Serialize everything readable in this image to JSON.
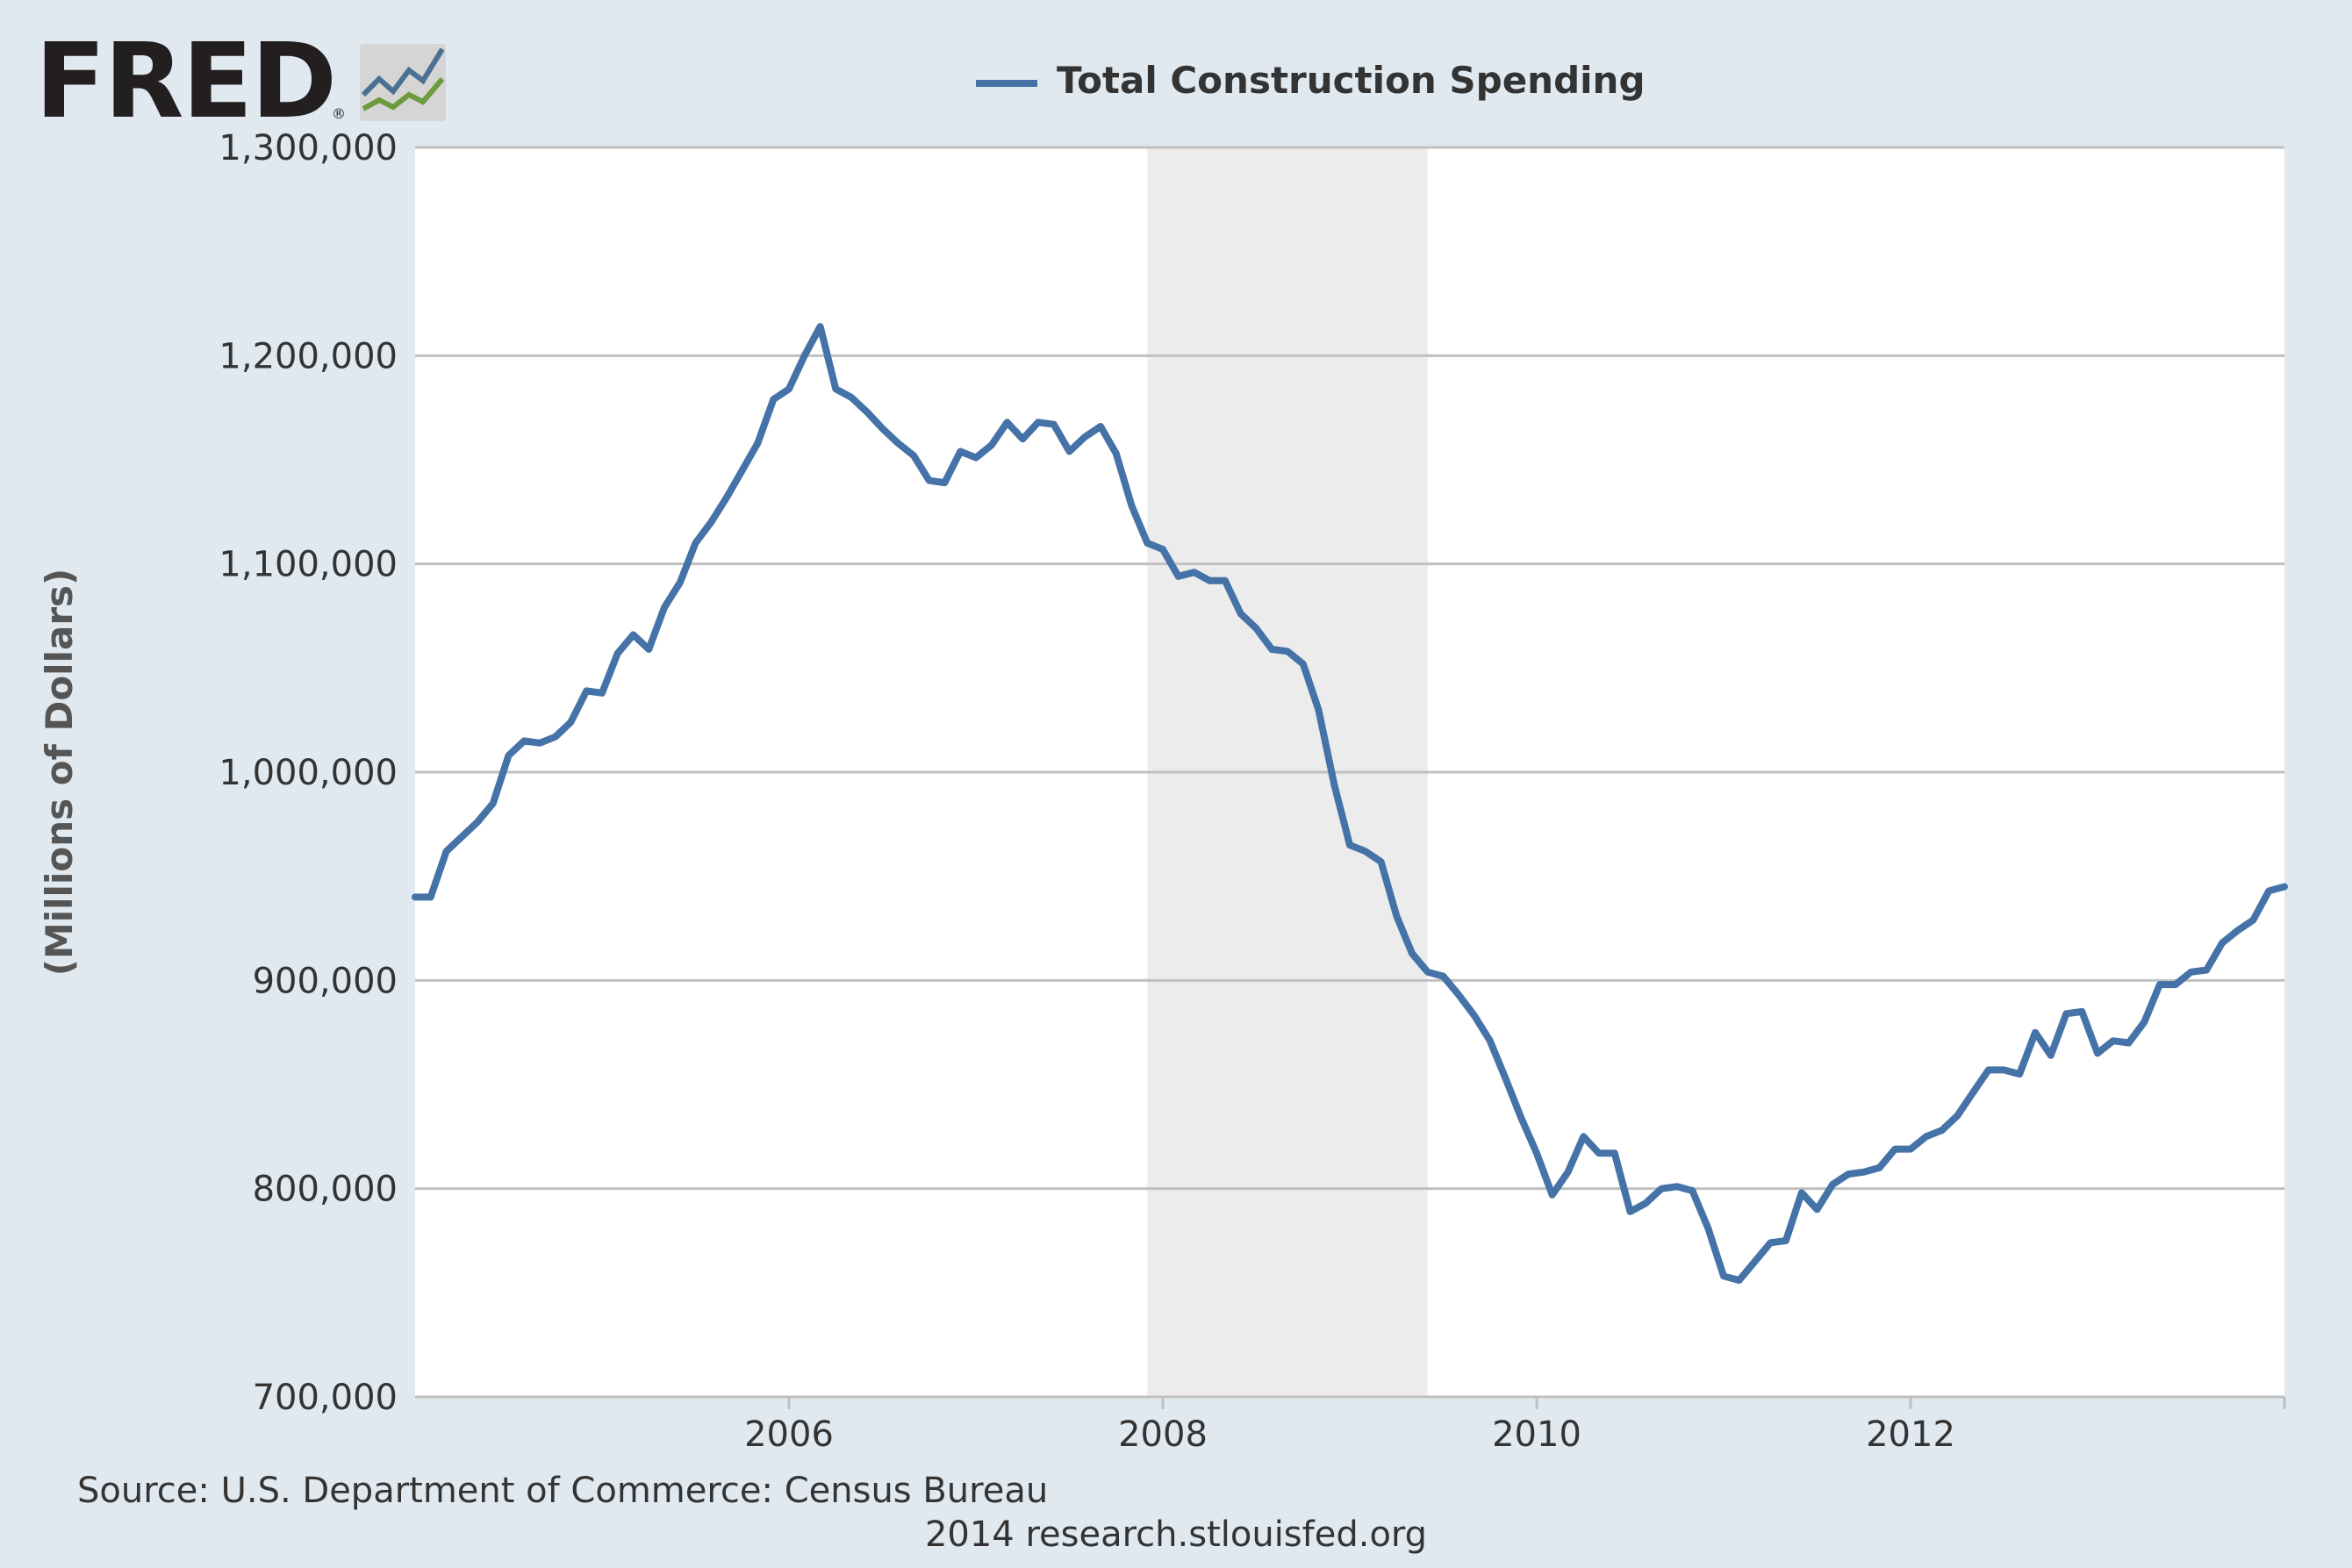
{
  "logo": {
    "text": "FRED",
    "registered_mark": "®",
    "icon": "fred-graph-icon"
  },
  "legend": {
    "label": "Total Construction Spending",
    "color": "#4572a7"
  },
  "footer": {
    "source": "Source: U.S. Department of Commerce: Census Bureau",
    "credit": "2014 research.stlouisfed.org"
  },
  "colors": {
    "background": "#e1e9f0",
    "plot_background": "#ffffff",
    "recession_shading": "#ececec",
    "gridline": "#c0c0c0",
    "series": "#4572a7",
    "text": "#333333"
  },
  "chart_data": {
    "type": "line",
    "title": "",
    "xlabel": "",
    "ylabel": "(Millions of Dollars)",
    "xlim": [
      2004.0,
      2014.0
    ],
    "ylim": [
      700000,
      1300000
    ],
    "x_ticks": [
      2006,
      2008,
      2010,
      2012
    ],
    "x_tick_labels": [
      "2006",
      "2008",
      "2010",
      "2012"
    ],
    "y_ticks": [
      700000,
      800000,
      900000,
      1000000,
      1100000,
      1200000,
      1300000
    ],
    "y_tick_labels": [
      "700,000",
      "800,000",
      "900,000",
      "1,000,000",
      "1,100,000",
      "1,200,000",
      "1,300,000"
    ],
    "grid": true,
    "legend_position": "top-center",
    "recession_shading": [
      [
        2007.917,
        2009.417
      ]
    ],
    "x": [
      2004.0,
      2004.083,
      2004.167,
      2004.25,
      2004.333,
      2004.417,
      2004.5,
      2004.583,
      2004.667,
      2004.75,
      2004.833,
      2004.917,
      2005.0,
      2005.083,
      2005.167,
      2005.25,
      2005.333,
      2005.417,
      2005.5,
      2005.583,
      2005.667,
      2005.75,
      2005.833,
      2005.917,
      2006.0,
      2006.083,
      2006.167,
      2006.25,
      2006.333,
      2006.417,
      2006.5,
      2006.583,
      2006.667,
      2006.75,
      2006.833,
      2006.917,
      2007.0,
      2007.083,
      2007.167,
      2007.25,
      2007.333,
      2007.417,
      2007.5,
      2007.583,
      2007.667,
      2007.75,
      2007.833,
      2007.917,
      2008.0,
      2008.083,
      2008.167,
      2008.25,
      2008.333,
      2008.417,
      2008.5,
      2008.583,
      2008.667,
      2008.75,
      2008.833,
      2008.917,
      2009.0,
      2009.083,
      2009.167,
      2009.25,
      2009.333,
      2009.417,
      2009.5,
      2009.583,
      2009.667,
      2009.75,
      2009.833,
      2009.917,
      2010.0,
      2010.083,
      2010.167,
      2010.25,
      2010.333,
      2010.417,
      2010.5,
      2010.583,
      2010.667,
      2010.75,
      2010.833,
      2010.917,
      2011.0,
      2011.083,
      2011.167,
      2011.25,
      2011.333,
      2011.417,
      2011.5,
      2011.583,
      2011.667,
      2011.75,
      2011.833,
      2011.917,
      2012.0,
      2012.083,
      2012.167,
      2012.25,
      2012.333,
      2012.417,
      2012.5,
      2012.583,
      2012.667,
      2012.75,
      2012.833,
      2012.917,
      2013.0,
      2013.083,
      2013.167,
      2013.25,
      2013.333,
      2013.417,
      2013.5,
      2013.583,
      2013.667,
      2013.75,
      2013.833,
      2013.917,
      2014.0
    ],
    "series": [
      {
        "name": "Total Construction Spending",
        "color": "#4572a7",
        "values": [
          940000,
          940000,
          962000,
          969000,
          976000,
          985000,
          1008000,
          1015000,
          1014000,
          1017000,
          1024000,
          1039000,
          1038000,
          1057000,
          1066000,
          1059000,
          1079000,
          1091000,
          1110000,
          1120000,
          1132000,
          1145000,
          1158000,
          1179000,
          1184000,
          1200000,
          1214000,
          1184000,
          1180000,
          1173000,
          1165000,
          1158000,
          1152000,
          1140000,
          1139000,
          1154000,
          1151000,
          1157000,
          1168000,
          1160000,
          1168000,
          1167000,
          1154000,
          1161000,
          1166000,
          1153000,
          1128000,
          1110000,
          1107000,
          1094000,
          1096000,
          1092000,
          1092000,
          1076000,
          1069000,
          1059000,
          1058000,
          1052000,
          1030000,
          994000,
          965000,
          962000,
          957000,
          931000,
          913000,
          904000,
          902000,
          893000,
          883000,
          871000,
          853000,
          834000,
          817000,
          797000,
          808000,
          825000,
          817000,
          817000,
          789000,
          793000,
          800000,
          801000,
          799000,
          781000,
          758000,
          756000,
          765000,
          774000,
          775000,
          798000,
          790000,
          802000,
          807000,
          808000,
          810000,
          819000,
          819000,
          825000,
          828000,
          835000,
          846000,
          857000,
          857000,
          855000,
          875000,
          864000,
          884000,
          885000,
          865000,
          871000,
          870000,
          880000,
          898000,
          898000,
          904000,
          905000,
          918000,
          924000,
          929000,
          943000,
          945000
        ]
      }
    ]
  }
}
